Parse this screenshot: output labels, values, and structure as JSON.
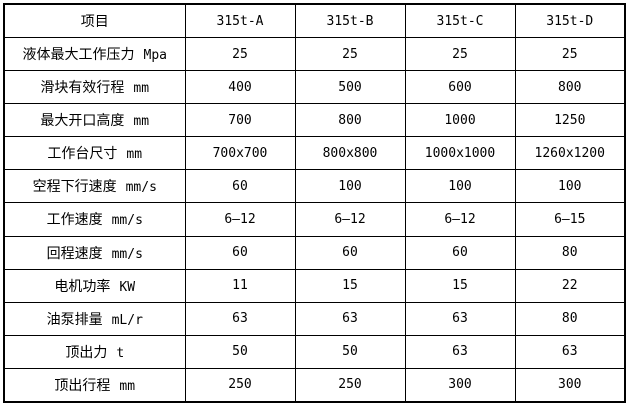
{
  "colors": {
    "border": "#000000",
    "text": "#000000",
    "background": "#ffffff"
  },
  "table": {
    "header": [
      "项目",
      "315t-A",
      "315t-B",
      "315t-C",
      "315t-D"
    ],
    "rows": [
      {
        "label": "液体最大工作压力",
        "unit": "Mpa",
        "values": [
          "25",
          "25",
          "25",
          "25"
        ]
      },
      {
        "label": "滑块有效行程",
        "unit": "mm",
        "values": [
          "400",
          "500",
          "600",
          "800"
        ]
      },
      {
        "label": "最大开口高度",
        "unit": "mm",
        "values": [
          "700",
          "800",
          "1000",
          "1250"
        ]
      },
      {
        "label": "工作台尺寸",
        "unit": "mm",
        "values": [
          "700x700",
          "800x800",
          "1000x1000",
          "1260x1200"
        ]
      },
      {
        "label": "空程下行速度",
        "unit": "mm/s",
        "values": [
          "60",
          "100",
          "100",
          "100"
        ]
      },
      {
        "label": "工作速度",
        "unit": "mm/s",
        "values": [
          "6—12",
          "6—12",
          "6—12",
          "6—15"
        ]
      },
      {
        "label": "回程速度",
        "unit": "mm/s",
        "values": [
          "60",
          "60",
          "60",
          "80"
        ]
      },
      {
        "label": "电机功率",
        "unit": "KW",
        "values": [
          "11",
          "15",
          "15",
          "22"
        ]
      },
      {
        "label": "油泵排量",
        "unit": "mL/r",
        "values": [
          "63",
          "63",
          "63",
          "80"
        ]
      },
      {
        "label": "顶出力",
        "unit": "t",
        "values": [
          "50",
          "50",
          "63",
          "63"
        ]
      },
      {
        "label": "顶出行程",
        "unit": "mm",
        "values": [
          "250",
          "250",
          "300",
          "300"
        ]
      }
    ]
  }
}
